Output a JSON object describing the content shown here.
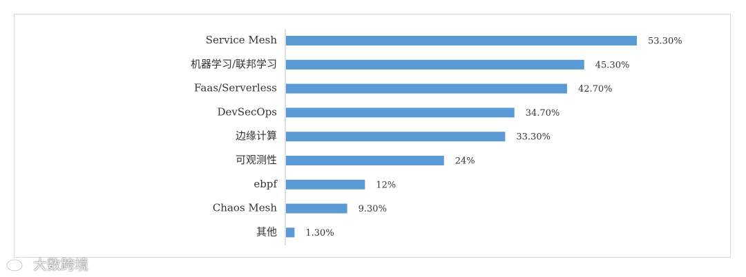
{
  "chart_data": {
    "type": "bar",
    "orientation": "horizontal",
    "title": "",
    "xlabel": "",
    "ylabel": "",
    "categories": [
      "Service Mesh",
      "机器学习/联邦学习",
      "Faas/Serverless",
      "DevSecOps",
      "边缘计算",
      "可观测性",
      "ebpf",
      "Chaos Mesh",
      "其他"
    ],
    "values": [
      53.3,
      45.3,
      42.7,
      34.7,
      33.3,
      24,
      12,
      9.3,
      1.3
    ],
    "value_labels": [
      "53.30%",
      "45.30%",
      "42.70%",
      "34.70%",
      "33.30%",
      "24%",
      "12%",
      "9.30%",
      "1.30%"
    ],
    "xlim": [
      0,
      60
    ],
    "grid": false,
    "legend": "none",
    "bar_color": "#5b9bd5",
    "axis_color": "#bfbfbf"
  },
  "watermark": {
    "text": "大数跨境",
    "icon": "weibo-logo-icon"
  }
}
